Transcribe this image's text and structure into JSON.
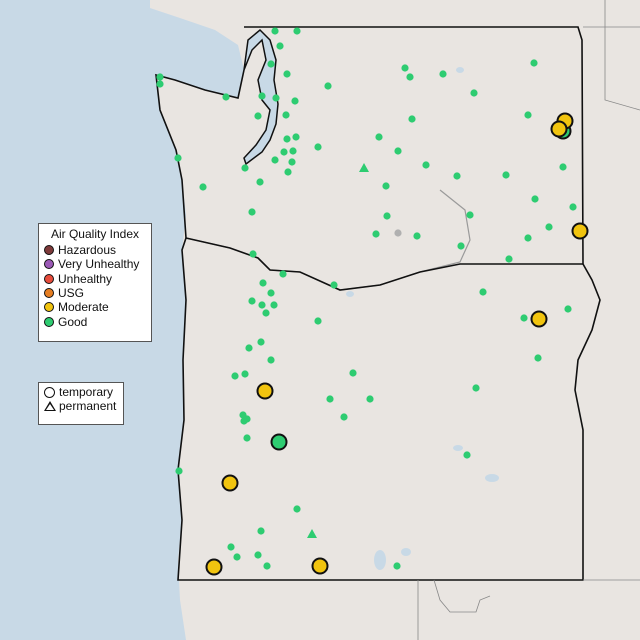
{
  "legend_aqi": {
    "title": "Air Quality Index",
    "items": [
      {
        "label": "Hazardous",
        "color": "#7e3a3a"
      },
      {
        "label": "Very Unhealthy",
        "color": "#9b59b6"
      },
      {
        "label": "Unhealthy",
        "color": "#e74c3c"
      },
      {
        "label": "USG",
        "color": "#e67e22"
      },
      {
        "label": "Moderate",
        "color": "#f1c40f"
      },
      {
        "label": "Good",
        "color": "#2ecc71"
      }
    ]
  },
  "legend_type": {
    "items": [
      {
        "label": "temporary",
        "icon": "circle-icon"
      },
      {
        "label": "permanent",
        "icon": "triangle-icon"
      }
    ]
  },
  "colors": {
    "ocean": "#c8d9e6",
    "land": "#e9e5e1",
    "no_data": "#b0b0b0"
  }
}
